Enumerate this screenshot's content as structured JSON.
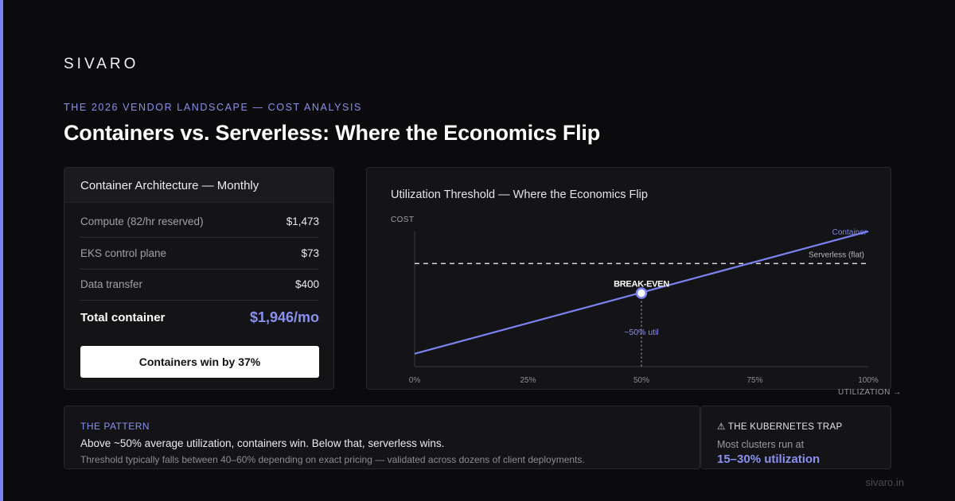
{
  "brand": "SIVARO",
  "kicker": "THE 2026 VENDOR LANDSCAPE — COST ANALYSIS",
  "headline": "Containers vs. Serverless: Where the Economics Flip",
  "cost_card": {
    "title": "Container Architecture — Monthly",
    "rows": [
      {
        "label": "Compute (82/hr reserved)",
        "value": "$1,473"
      },
      {
        "label": "EKS control plane",
        "value": "$73"
      },
      {
        "label": "Data transfer",
        "value": "$400"
      }
    ],
    "total_label": "Total container",
    "total_value": "$1,946/mo",
    "verdict": "Containers win by 37%"
  },
  "chart_data": {
    "type": "line",
    "title": "Utilization Threshold — Where the Economics Flip",
    "ylabel": "COST",
    "xlabel": "UTILIZATION →",
    "x_ticks": [
      "0%",
      "25%",
      "50%",
      "75%",
      "100%"
    ],
    "xlim": [
      0,
      100
    ],
    "ylim": [
      0,
      100
    ],
    "series": [
      {
        "name": "Container",
        "style": "solid",
        "color": "#7c83f0",
        "x": [
          0,
          100
        ],
        "y": [
          10,
          105
        ]
      },
      {
        "name": "Serverless (flat)",
        "style": "dashed",
        "color": "#d8d8de",
        "x": [
          0,
          100
        ],
        "y": [
          80,
          80
        ]
      }
    ],
    "annotations": [
      {
        "text": "BREAK-EVEN",
        "x": 50,
        "y": 57
      },
      {
        "text": "~50% util",
        "x": 50
      }
    ],
    "grid": false,
    "legend": "inline labels at line ends"
  },
  "pattern": {
    "kicker": "THE PATTERN",
    "main": "Above ~50% average utilization, containers win. Below that, serverless wins.",
    "sub": "Threshold typically falls between 40–60% depending on exact pricing — validated across dozens of client deployments."
  },
  "trap": {
    "kicker": "⚠ THE KUBERNETES TRAP",
    "main": "Most clusters run at",
    "value": "15–30% utilization"
  },
  "domain": "sivaro.in",
  "colors": {
    "accent": "#7c83f0",
    "background": "#0b0b0d",
    "panel": "#141417"
  }
}
